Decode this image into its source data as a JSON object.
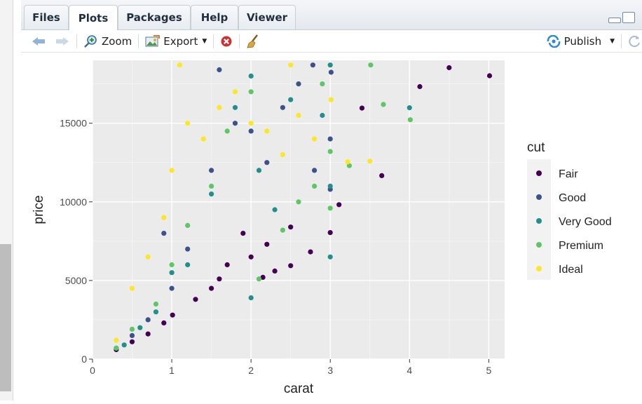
{
  "tabs": [
    {
      "label": "Files",
      "active": false
    },
    {
      "label": "Plots",
      "active": true
    },
    {
      "label": "Packages",
      "active": false
    },
    {
      "label": "Help",
      "active": false
    },
    {
      "label": "Viewer",
      "active": false
    }
  ],
  "toolbar": {
    "back_icon": "arrow-left-icon",
    "forward_icon": "arrow-right-icon",
    "zoom_label": "Zoom",
    "export_label": "Export",
    "remove_icon": "remove-plot-icon",
    "clear_icon": "broom-icon",
    "publish_label": "Publish",
    "refresh_icon": "refresh-icon"
  },
  "colors": {
    "Fair": "#440154",
    "Good": "#3b528b",
    "Very Good": "#21908c",
    "Premium": "#5dc863",
    "Ideal": "#fde725",
    "panel": "#ebebeb"
  },
  "chart_data": {
    "type": "scatter",
    "title": "",
    "xlabel": "carat",
    "ylabel": "price",
    "xlim": [
      0,
      5.2
    ],
    "ylim": [
      0,
      19000
    ],
    "xticks": [
      0,
      1,
      2,
      3,
      4,
      5
    ],
    "yticks": [
      0,
      5000,
      10000,
      15000
    ],
    "grid": true,
    "legend": {
      "title": "cut",
      "position": "right",
      "entries": [
        "Fair",
        "Good",
        "Very Good",
        "Premium",
        "Ideal"
      ]
    },
    "series": [
      {
        "name": "Fair",
        "points": [
          [
            5.01,
            18018
          ],
          [
            4.5,
            18531
          ],
          [
            4.13,
            17329
          ],
          [
            3.65,
            11668
          ],
          [
            3.4,
            15964
          ],
          [
            3.11,
            9823
          ],
          [
            3.0,
            8044
          ],
          [
            2.75,
            6821
          ],
          [
            2.5,
            5940
          ],
          [
            2.3,
            5600
          ],
          [
            2.15,
            5200
          ],
          [
            2.0,
            6500
          ],
          [
            1.7,
            6000
          ],
          [
            1.5,
            4500
          ],
          [
            1.3,
            3800
          ],
          [
            1.01,
            2800
          ],
          [
            0.9,
            2300
          ],
          [
            0.7,
            1600
          ],
          [
            0.5,
            1100
          ],
          [
            0.3,
            600
          ],
          [
            2.5,
            8400
          ],
          [
            2.2,
            7300
          ],
          [
            1.9,
            8000
          ],
          [
            1.6,
            5100
          ]
        ]
      },
      {
        "name": "Good",
        "points": [
          [
            3.01,
            18242
          ],
          [
            3.0,
            14000
          ],
          [
            2.8,
            12000
          ],
          [
            3.0,
            10800
          ],
          [
            2.6,
            17500
          ],
          [
            2.4,
            16000
          ],
          [
            2.2,
            12500
          ],
          [
            2.0,
            14500
          ],
          [
            1.8,
            15000
          ],
          [
            1.5,
            12000
          ],
          [
            1.2,
            7000
          ],
          [
            1.0,
            4500
          ],
          [
            0.9,
            8000
          ],
          [
            0.7,
            2500
          ],
          [
            0.5,
            1500
          ],
          [
            0.3,
            700
          ],
          [
            2.78,
            18700
          ],
          [
            1.6,
            18400
          ]
        ]
      },
      {
        "name": "Very Good",
        "points": [
          [
            4.0,
            15984
          ],
          [
            3.0,
            18700
          ],
          [
            3.0,
            6500
          ],
          [
            3.0,
            11000
          ],
          [
            2.9,
            15500
          ],
          [
            2.5,
            16500
          ],
          [
            2.3,
            9500
          ],
          [
            2.1,
            12000
          ],
          [
            2.0,
            18000
          ],
          [
            1.8,
            16000
          ],
          [
            1.5,
            10500
          ],
          [
            1.2,
            6000
          ],
          [
            1.0,
            5500
          ],
          [
            0.8,
            3000
          ],
          [
            0.6,
            2000
          ],
          [
            0.4,
            900
          ],
          [
            2.0,
            3900
          ]
        ]
      },
      {
        "name": "Premium",
        "points": [
          [
            4.01,
            15223
          ],
          [
            3.51,
            18701
          ],
          [
            3.67,
            16193
          ],
          [
            3.24,
            12300
          ],
          [
            3.0,
            13200
          ],
          [
            3.0,
            9600
          ],
          [
            2.8,
            11000
          ],
          [
            2.6,
            10000
          ],
          [
            2.4,
            8200
          ],
          [
            2.1,
            5100
          ],
          [
            2.0,
            17000
          ],
          [
            1.7,
            14500
          ],
          [
            1.5,
            11000
          ],
          [
            1.2,
            8500
          ],
          [
            1.0,
            6000
          ],
          [
            0.8,
            3500
          ],
          [
            0.5,
            1900
          ],
          [
            0.3,
            700
          ],
          [
            2.9,
            17500
          ]
        ]
      },
      {
        "name": "Ideal",
        "points": [
          [
            3.5,
            12587
          ],
          [
            3.22,
            12545
          ],
          [
            3.01,
            16500
          ],
          [
            2.8,
            14000
          ],
          [
            2.6,
            15500
          ],
          [
            2.4,
            13000
          ],
          [
            2.2,
            14500
          ],
          [
            2.0,
            15000
          ],
          [
            1.8,
            17000
          ],
          [
            1.6,
            16000
          ],
          [
            1.4,
            14000
          ],
          [
            1.2,
            15000
          ],
          [
            1.0,
            12000
          ],
          [
            0.9,
            9000
          ],
          [
            0.7,
            6500
          ],
          [
            0.5,
            4500
          ],
          [
            0.3,
            1200
          ],
          [
            1.1,
            18700
          ],
          [
            2.5,
            18700
          ]
        ]
      }
    ]
  }
}
